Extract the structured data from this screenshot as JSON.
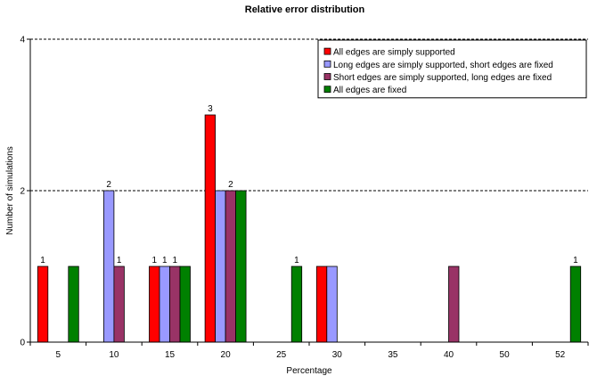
{
  "chart_data": {
    "type": "bar",
    "title": "Relative error distribution",
    "xlabel": "Percentage",
    "ylabel": "Number of simulations",
    "ylim": [
      0,
      4
    ],
    "yticks": [
      0,
      2,
      4
    ],
    "grid": true,
    "legend_position": "top-right",
    "categories": [
      "5",
      "10",
      "15",
      "20",
      "25",
      "30",
      "35",
      "40",
      "50",
      "52"
    ],
    "series": [
      {
        "name": "All edges are simply supported",
        "color": "#ff0000",
        "values": [
          1,
          0,
          1,
          3,
          0,
          1,
          0,
          0,
          0,
          0
        ],
        "labels": [
          "1",
          "",
          "1",
          "3",
          "",
          "",
          "",
          "",
          "",
          ""
        ]
      },
      {
        "name": "Long edges are simply supported, short edges are fixed",
        "color": "#9999ff",
        "values": [
          0,
          2,
          1,
          2,
          0,
          1,
          0,
          0,
          0,
          0
        ],
        "labels": [
          "",
          "2",
          "1",
          "",
          "",
          "",
          "",
          "",
          "",
          ""
        ]
      },
      {
        "name": "Short edges are simply supported, long edges are fixed",
        "color": "#993366",
        "values": [
          0,
          1,
          1,
          2,
          0,
          0,
          0,
          1,
          0,
          0
        ],
        "labels": [
          "",
          "1",
          "1",
          "2",
          "",
          "",
          "",
          "",
          "",
          ""
        ]
      },
      {
        "name": "All edges are fixed",
        "color": "#008000",
        "values": [
          1,
          0,
          1,
          2,
          1,
          0,
          0,
          0,
          0,
          1
        ],
        "labels": [
          "",
          "",
          "",
          "",
          "1",
          "",
          "",
          "",
          "",
          "1"
        ]
      }
    ]
  }
}
